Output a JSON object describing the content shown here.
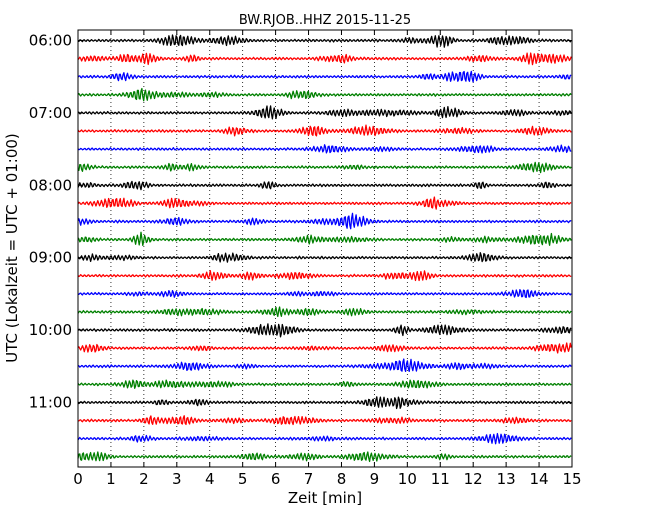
{
  "chart_data": {
    "type": "line",
    "title": "BW.RJOB..HHZ 2015-11-25",
    "xlabel": "Zeit  [min]",
    "ylabel": "UTC (Lokalzeit = UTC + 01:00)",
    "xlim": [
      0,
      15
    ],
    "x_ticks": [
      0,
      1,
      2,
      3,
      4,
      5,
      6,
      7,
      8,
      9,
      10,
      11,
      12,
      13,
      14,
      15
    ],
    "x_tick_labels": [
      "0",
      "1",
      "2",
      "3",
      "4",
      "5",
      "6",
      "7",
      "8",
      "9",
      "10",
      "11",
      "12",
      "13",
      "14",
      "15"
    ],
    "hour_labels": [
      "06:00",
      "07:00",
      "08:00",
      "09:00",
      "10:00",
      "11:00"
    ],
    "traces_per_hour": 4,
    "trace_colors": [
      "#000000",
      "#ff0000",
      "#0000ff",
      "#008000"
    ],
    "trace_count": 24,
    "grid": "vertical dotted"
  }
}
